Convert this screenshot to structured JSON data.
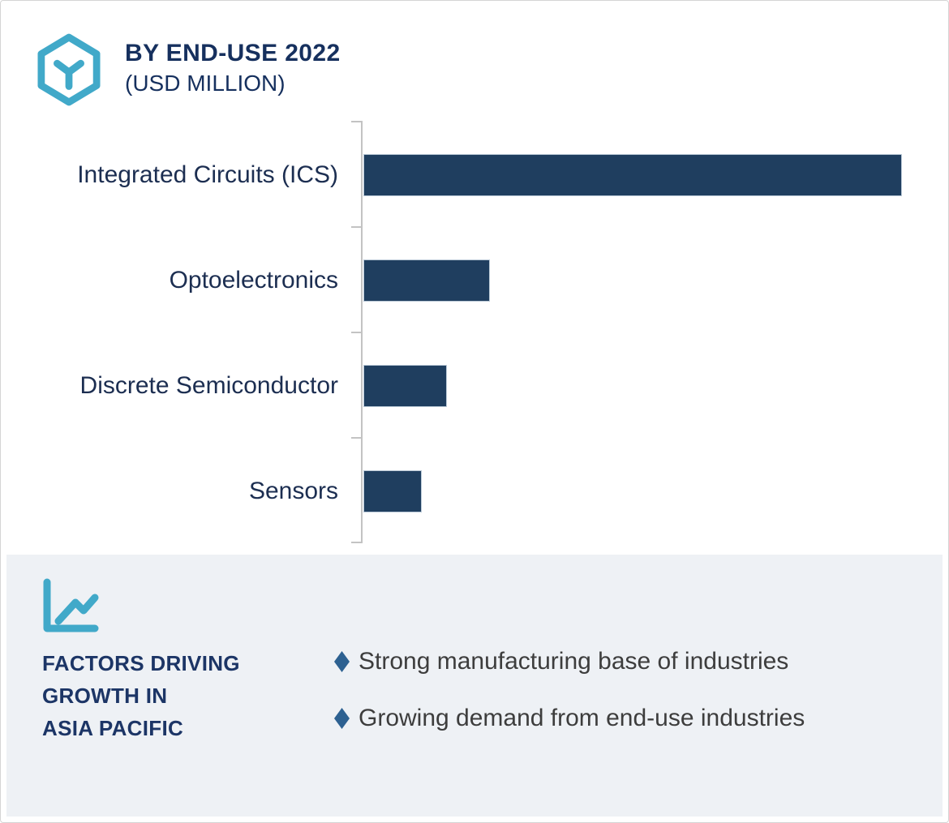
{
  "header": {
    "title": "BY END-USE 2022",
    "subtitle": "(USD MILLION)"
  },
  "chart_data": {
    "type": "bar",
    "orientation": "horizontal",
    "title": "BY END-USE 2022 (USD MILLION)",
    "xlabel": "",
    "ylabel": "",
    "categories": [
      "Integrated Circuits (ICS)",
      "Optoelectronics",
      "Discrete Semiconductor",
      "Sensors"
    ],
    "values_relative_pct": [
      100,
      23.5,
      15.5,
      10.8
    ],
    "value_labels_shown": "none",
    "axis_tick_labels_shown": "none",
    "grid": false,
    "legend": "none",
    "bar_color": "#1f3e5f",
    "axis_color": "#c3c3c3"
  },
  "factors": {
    "heading": "FACTORS DRIVING\nGROWTH IN\nASIA PACIFIC",
    "items": [
      "Strong manufacturing base of industries",
      "Growing demand from end-use industries"
    ]
  },
  "colors": {
    "accent_teal": "#41a9c9",
    "navy_text": "#16305e",
    "bar_navy": "#1f3e5f",
    "bullet_blue": "#2d6191",
    "panel_background": "#eef1f5",
    "body_text": "#3d3d3d"
  }
}
